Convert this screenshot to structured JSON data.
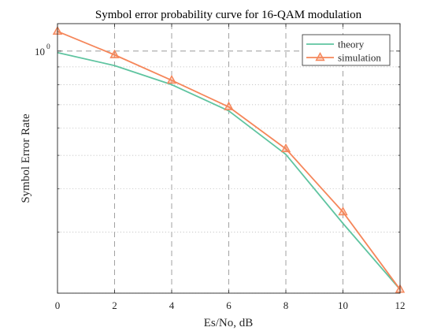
{
  "chart_data": {
    "type": "line",
    "title": "Symbol error probability curve for 16-QAM modulation",
    "xlabel": "Es/No, dB",
    "ylabel": "Symbol Error Rate",
    "xscale": "linear",
    "yscale": "log",
    "xlim": [
      0,
      12
    ],
    "ylim": [
      0.2,
      1.2
    ],
    "xticks": [
      0,
      2,
      4,
      6,
      8,
      10,
      12
    ],
    "ytick_labels": [
      {
        "value": 1,
        "base": "10",
        "exponent": "0"
      }
    ],
    "grid": true,
    "legend": "top-right",
    "x": [
      0,
      2,
      4,
      6,
      8,
      10,
      12
    ],
    "series": [
      {
        "name": "theory",
        "color": "#5fc4a0",
        "marker": "none",
        "values": [
          0.99,
          0.908,
          0.8,
          0.672,
          0.503,
          0.318,
          0.205
        ]
      },
      {
        "name": "simulation",
        "color": "#f5865a",
        "marker": "triangle",
        "values": [
          1.14,
          0.975,
          0.823,
          0.69,
          0.522,
          0.343,
          0.205
        ]
      }
    ]
  }
}
